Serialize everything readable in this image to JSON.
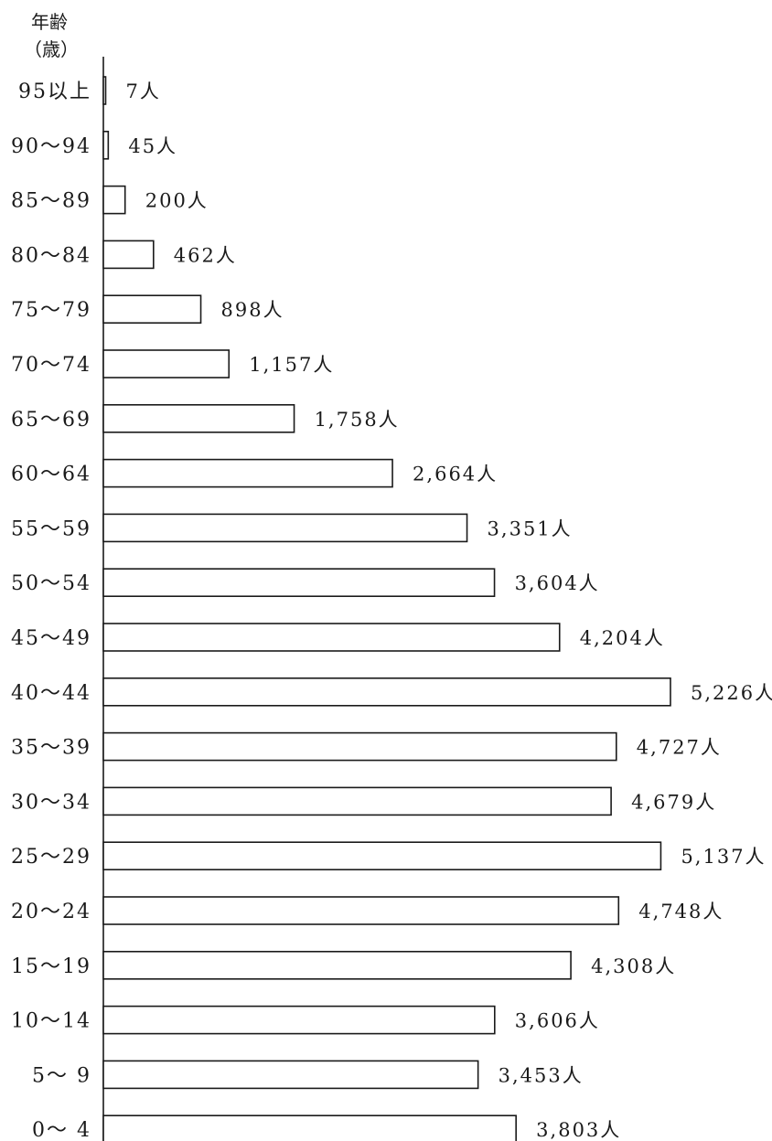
{
  "chart_data": {
    "type": "bar",
    "orientation": "horizontal",
    "ylabel_line1": "年齢",
    "ylabel_line2": "（歳）",
    "value_suffix": "人",
    "categories": [
      "95以上",
      "90〜94",
      "85〜89",
      "80〜84",
      "75〜79",
      "70〜74",
      "65〜69",
      "60〜64",
      "55〜59",
      "50〜54",
      "45〜49",
      "40〜44",
      "35〜39",
      "30〜34",
      "25〜29",
      "20〜24",
      "15〜19",
      "10〜14",
      "5〜 9",
      "0〜 4"
    ],
    "values": [
      7,
      45,
      200,
      462,
      898,
      1157,
      1758,
      2664,
      3351,
      3604,
      4204,
      5226,
      4727,
      4679,
      5137,
      4748,
      4308,
      3606,
      3453,
      3803
    ],
    "value_labels": [
      "7人",
      "45人",
      "200人",
      "462人",
      "898人",
      "1,157人",
      "1,758人",
      "2,664人",
      "3,351人",
      "3,604人",
      "4,204人",
      "5,226人",
      "4,727人",
      "4,679人",
      "5,137人",
      "4,748人",
      "4,308人",
      "3,606人",
      "3,453人",
      "3,803人"
    ],
    "grid": false,
    "legend": "none",
    "bar_fill": "#ffffff",
    "bar_stroke": "#1a1a1a"
  }
}
